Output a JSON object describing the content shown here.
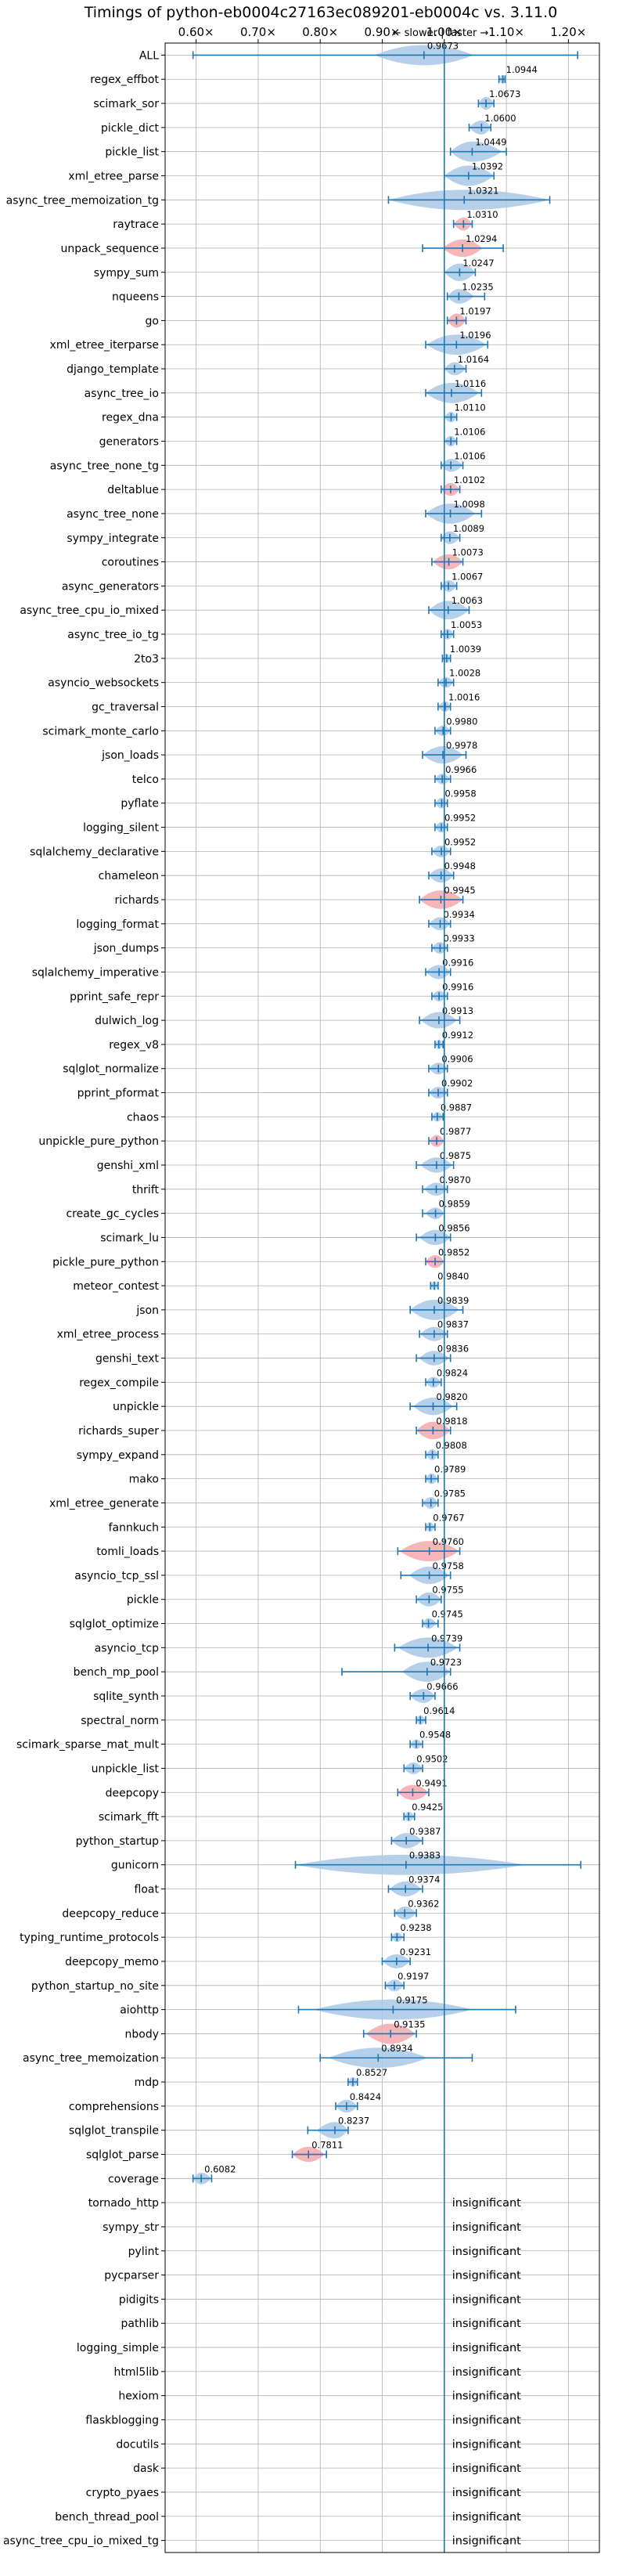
{
  "chart_data": {
    "type": "violin",
    "title": "Timings of python-eb0004c27163ec089201-eb0004c vs. 3.11.0",
    "annotation": "← slower | faster →",
    "x_ticks": [
      "0.60×",
      "0.70×",
      "0.80×",
      "0.90×",
      "1.00×",
      "1.10×",
      "1.20×"
    ],
    "x_tick_values": [
      0.6,
      0.7,
      0.8,
      0.9,
      1.0,
      1.1,
      1.2
    ],
    "xlim": [
      0.55,
      1.25
    ],
    "reference_line": 1.0,
    "grid": true,
    "insignificant_label": "insignificant",
    "benchmarks": [
      {
        "name": "ALL",
        "value": 0.9673,
        "min": 0.595,
        "max": 1.215,
        "spread": 0.05,
        "label": "0.9673"
      },
      {
        "name": "regex_effbot",
        "value": 1.0944,
        "min": 1.088,
        "max": 1.098,
        "spread": 0.005,
        "label": "1.0944"
      },
      {
        "name": "scimark_sor",
        "value": 1.0673,
        "min": 1.055,
        "max": 1.08,
        "spread": 0.012,
        "label": "1.0673"
      },
      {
        "name": "pickle_dict",
        "value": 1.06,
        "min": 1.04,
        "max": 1.075,
        "spread": 0.014,
        "label": "1.0600"
      },
      {
        "name": "pickle_list",
        "value": 1.0449,
        "min": 1.01,
        "max": 1.1,
        "spread": 0.03,
        "label": "1.0449"
      },
      {
        "name": "xml_etree_parse",
        "value": 1.0392,
        "min": 1.0,
        "max": 1.08,
        "spread": 0.028,
        "label": "1.0392"
      },
      {
        "name": "async_tree_memoization_tg",
        "value": 1.0321,
        "min": 0.91,
        "max": 1.17,
        "spread": 0.09,
        "label": "1.0321"
      },
      {
        "name": "raytrace",
        "value": 1.031,
        "min": 1.015,
        "max": 1.045,
        "spread": 0.012,
        "label": "1.0310",
        "highlight": true
      },
      {
        "name": "unpack_sequence",
        "value": 1.0294,
        "min": 0.965,
        "max": 1.095,
        "spread": 0.02,
        "label": "1.0294",
        "highlight": true
      },
      {
        "name": "sympy_sum",
        "value": 1.0247,
        "min": 1.0,
        "max": 1.05,
        "spread": 0.02,
        "label": "1.0247"
      },
      {
        "name": "nqueens",
        "value": 1.0235,
        "min": 1.005,
        "max": 1.065,
        "spread": 0.015,
        "label": "1.0235"
      },
      {
        "name": "go",
        "value": 1.0197,
        "min": 1.005,
        "max": 1.035,
        "spread": 0.014,
        "label": "1.0197",
        "highlight": true
      },
      {
        "name": "xml_etree_iterparse",
        "value": 1.0196,
        "min": 0.97,
        "max": 1.07,
        "spread": 0.03,
        "label": "1.0196"
      },
      {
        "name": "django_template",
        "value": 1.0164,
        "min": 1.0,
        "max": 1.035,
        "spread": 0.012,
        "label": "1.0164"
      },
      {
        "name": "async_tree_io",
        "value": 1.0116,
        "min": 0.97,
        "max": 1.06,
        "spread": 0.028,
        "label": "1.0116"
      },
      {
        "name": "regex_dna",
        "value": 1.011,
        "min": 1.0,
        "max": 1.02,
        "spread": 0.008,
        "label": "1.0110"
      },
      {
        "name": "generators",
        "value": 1.0106,
        "min": 1.0,
        "max": 1.02,
        "spread": 0.008,
        "label": "1.0106"
      },
      {
        "name": "async_tree_none_tg",
        "value": 1.0106,
        "min": 0.995,
        "max": 1.03,
        "spread": 0.012,
        "label": "1.0106"
      },
      {
        "name": "deltablue",
        "value": 1.0102,
        "min": 0.995,
        "max": 1.025,
        "spread": 0.012,
        "label": "1.0102",
        "highlight": true
      },
      {
        "name": "async_tree_none",
        "value": 1.0098,
        "min": 0.97,
        "max": 1.06,
        "spread": 0.025,
        "label": "1.0098"
      },
      {
        "name": "sympy_integrate",
        "value": 1.0089,
        "min": 0.995,
        "max": 1.025,
        "spread": 0.012,
        "label": "1.0089"
      },
      {
        "name": "coroutines",
        "value": 1.0073,
        "min": 0.98,
        "max": 1.03,
        "spread": 0.016,
        "label": "1.0073",
        "highlight": true
      },
      {
        "name": "async_generators",
        "value": 1.0067,
        "min": 0.995,
        "max": 1.02,
        "spread": 0.01,
        "label": "1.0067"
      },
      {
        "name": "async_tree_cpu_io_mixed",
        "value": 1.0063,
        "min": 0.975,
        "max": 1.04,
        "spread": 0.022,
        "label": "1.0063"
      },
      {
        "name": "async_tree_io_tg",
        "value": 1.0053,
        "min": 0.995,
        "max": 1.015,
        "spread": 0.008,
        "label": "1.0053"
      },
      {
        "name": "2to3",
        "value": 1.0039,
        "min": 0.997,
        "max": 1.01,
        "spread": 0.006,
        "label": "1.0039"
      },
      {
        "name": "asyncio_websockets",
        "value": 1.0028,
        "min": 0.99,
        "max": 1.015,
        "spread": 0.008,
        "label": "1.0028"
      },
      {
        "name": "gc_traversal",
        "value": 1.0016,
        "min": 0.99,
        "max": 1.01,
        "spread": 0.008,
        "label": "1.0016"
      },
      {
        "name": "scimark_monte_carlo",
        "value": 0.998,
        "min": 0.985,
        "max": 1.01,
        "spread": 0.008,
        "label": "0.9980"
      },
      {
        "name": "json_loads",
        "value": 0.9978,
        "min": 0.965,
        "max": 1.035,
        "spread": 0.02,
        "label": "0.9978"
      },
      {
        "name": "telco",
        "value": 0.9966,
        "min": 0.985,
        "max": 1.01,
        "spread": 0.008,
        "label": "0.9966"
      },
      {
        "name": "pyflate",
        "value": 0.9958,
        "min": 0.985,
        "max": 1.005,
        "spread": 0.008,
        "label": "0.9958"
      },
      {
        "name": "logging_silent",
        "value": 0.9952,
        "min": 0.985,
        "max": 1.005,
        "spread": 0.008,
        "label": "0.9952"
      },
      {
        "name": "sqlalchemy_declarative",
        "value": 0.9952,
        "min": 0.98,
        "max": 1.01,
        "spread": 0.01,
        "label": "0.9952"
      },
      {
        "name": "chameleon",
        "value": 0.9948,
        "min": 0.975,
        "max": 1.015,
        "spread": 0.014,
        "label": "0.9948"
      },
      {
        "name": "richards",
        "value": 0.9945,
        "min": 0.96,
        "max": 1.03,
        "spread": 0.022,
        "label": "0.9945",
        "highlight": true
      },
      {
        "name": "logging_format",
        "value": 0.9934,
        "min": 0.975,
        "max": 1.01,
        "spread": 0.012,
        "label": "0.9934"
      },
      {
        "name": "json_dumps",
        "value": 0.9933,
        "min": 0.98,
        "max": 1.005,
        "spread": 0.01,
        "label": "0.9933"
      },
      {
        "name": "sqlalchemy_imperative",
        "value": 0.9916,
        "min": 0.97,
        "max": 1.01,
        "spread": 0.014,
        "label": "0.9916"
      },
      {
        "name": "pprint_safe_repr",
        "value": 0.9916,
        "min": 0.98,
        "max": 1.005,
        "spread": 0.008,
        "label": "0.9916"
      },
      {
        "name": "dulwich_log",
        "value": 0.9913,
        "min": 0.96,
        "max": 1.025,
        "spread": 0.018,
        "label": "0.9913"
      },
      {
        "name": "regex_v8",
        "value": 0.9912,
        "min": 0.985,
        "max": 0.998,
        "spread": 0.006,
        "label": "0.9912"
      },
      {
        "name": "sqlglot_normalize",
        "value": 0.9906,
        "min": 0.975,
        "max": 1.005,
        "spread": 0.01,
        "label": "0.9906"
      },
      {
        "name": "pprint_pformat",
        "value": 0.9902,
        "min": 0.975,
        "max": 1.005,
        "spread": 0.01,
        "label": "0.9902"
      },
      {
        "name": "chaos",
        "value": 0.9887,
        "min": 0.98,
        "max": 0.998,
        "spread": 0.006,
        "label": "0.9887"
      },
      {
        "name": "unpickle_pure_python",
        "value": 0.9877,
        "min": 0.975,
        "max": 1.0,
        "spread": 0.01,
        "label": "0.9877",
        "highlight": true
      },
      {
        "name": "genshi_xml",
        "value": 0.9875,
        "min": 0.955,
        "max": 1.015,
        "spread": 0.016,
        "label": "0.9875"
      },
      {
        "name": "thrift",
        "value": 0.987,
        "min": 0.965,
        "max": 1.005,
        "spread": 0.012,
        "label": "0.9870"
      },
      {
        "name": "create_gc_cycles",
        "value": 0.9859,
        "min": 0.965,
        "max": 1.0,
        "spread": 0.01,
        "label": "0.9859"
      },
      {
        "name": "scimark_lu",
        "value": 0.9856,
        "min": 0.955,
        "max": 1.01,
        "spread": 0.016,
        "label": "0.9856"
      },
      {
        "name": "pickle_pure_python",
        "value": 0.9852,
        "min": 0.97,
        "max": 1.0,
        "spread": 0.012,
        "label": "0.9852",
        "highlight": true
      },
      {
        "name": "meteor_contest",
        "value": 0.984,
        "min": 0.978,
        "max": 0.99,
        "spread": 0.005,
        "label": "0.9840"
      },
      {
        "name": "json",
        "value": 0.9839,
        "min": 0.945,
        "max": 1.03,
        "spread": 0.025,
        "label": "0.9839"
      },
      {
        "name": "xml_etree_process",
        "value": 0.9837,
        "min": 0.96,
        "max": 1.005,
        "spread": 0.014,
        "label": "0.9837"
      },
      {
        "name": "genshi_text",
        "value": 0.9836,
        "min": 0.955,
        "max": 1.01,
        "spread": 0.015,
        "label": "0.9836"
      },
      {
        "name": "regex_compile",
        "value": 0.9824,
        "min": 0.97,
        "max": 0.995,
        "spread": 0.008,
        "label": "0.9824"
      },
      {
        "name": "unpickle",
        "value": 0.982,
        "min": 0.945,
        "max": 1.02,
        "spread": 0.02,
        "label": "0.9820"
      },
      {
        "name": "richards_super",
        "value": 0.9818,
        "min": 0.955,
        "max": 1.01,
        "spread": 0.02,
        "label": "0.9818",
        "highlight": true
      },
      {
        "name": "sympy_expand",
        "value": 0.9808,
        "min": 0.97,
        "max": 0.99,
        "spread": 0.008,
        "label": "0.9808"
      },
      {
        "name": "mako",
        "value": 0.9789,
        "min": 0.97,
        "max": 0.99,
        "spread": 0.008,
        "label": "0.9789"
      },
      {
        "name": "xml_etree_generate",
        "value": 0.9785,
        "min": 0.965,
        "max": 0.99,
        "spread": 0.01,
        "label": "0.9785"
      },
      {
        "name": "fannkuch",
        "value": 0.9767,
        "min": 0.97,
        "max": 0.985,
        "spread": 0.006,
        "label": "0.9767"
      },
      {
        "name": "tomli_loads",
        "value": 0.976,
        "min": 0.925,
        "max": 1.025,
        "spread": 0.03,
        "label": "0.9760",
        "highlight": true
      },
      {
        "name": "asyncio_tcp_ssl",
        "value": 0.9758,
        "min": 0.93,
        "max": 1.01,
        "spread": 0.02,
        "label": "0.9758"
      },
      {
        "name": "pickle",
        "value": 0.9755,
        "min": 0.955,
        "max": 0.995,
        "spread": 0.014,
        "label": "0.9755"
      },
      {
        "name": "sqlglot_optimize",
        "value": 0.9745,
        "min": 0.965,
        "max": 0.99,
        "spread": 0.008,
        "label": "0.9745"
      },
      {
        "name": "asyncio_tcp",
        "value": 0.9739,
        "min": 0.92,
        "max": 1.025,
        "spread": 0.03,
        "label": "0.9739"
      },
      {
        "name": "bench_mp_pool",
        "value": 0.9723,
        "min": 0.835,
        "max": 1.01,
        "spread": 0.025,
        "label": "0.9723"
      },
      {
        "name": "sqlite_synth",
        "value": 0.9666,
        "min": 0.945,
        "max": 0.985,
        "spread": 0.014,
        "label": "0.9666"
      },
      {
        "name": "spectral_norm",
        "value": 0.9614,
        "min": 0.955,
        "max": 0.97,
        "spread": 0.006,
        "label": "0.9614"
      },
      {
        "name": "scimark_sparse_mat_mult",
        "value": 0.9548,
        "min": 0.945,
        "max": 0.965,
        "spread": 0.006,
        "label": "0.9548"
      },
      {
        "name": "unpickle_list",
        "value": 0.9502,
        "min": 0.935,
        "max": 0.965,
        "spread": 0.01,
        "label": "0.9502"
      },
      {
        "name": "deepcopy",
        "value": 0.9491,
        "min": 0.925,
        "max": 0.975,
        "spread": 0.016,
        "label": "0.9491",
        "highlight": true
      },
      {
        "name": "scimark_fft",
        "value": 0.9425,
        "min": 0.935,
        "max": 0.952,
        "spread": 0.006,
        "label": "0.9425"
      },
      {
        "name": "python_startup",
        "value": 0.9387,
        "min": 0.915,
        "max": 0.965,
        "spread": 0.016,
        "label": "0.9387"
      },
      {
        "name": "gunicorn",
        "value": 0.9383,
        "min": 0.76,
        "max": 1.22,
        "spread": 0.12,
        "label": "0.9383"
      },
      {
        "name": "float",
        "value": 0.9374,
        "min": 0.91,
        "max": 0.965,
        "spread": 0.016,
        "label": "0.9374"
      },
      {
        "name": "deepcopy_reduce",
        "value": 0.9362,
        "min": 0.92,
        "max": 0.955,
        "spread": 0.012,
        "label": "0.9362"
      },
      {
        "name": "typing_runtime_protocols",
        "value": 0.9238,
        "min": 0.915,
        "max": 0.935,
        "spread": 0.006,
        "label": "0.9238"
      },
      {
        "name": "deepcopy_memo",
        "value": 0.9231,
        "min": 0.9,
        "max": 0.945,
        "spread": 0.014,
        "label": "0.9231"
      },
      {
        "name": "python_startup_no_site",
        "value": 0.9197,
        "min": 0.905,
        "max": 0.935,
        "spread": 0.01,
        "label": "0.9197"
      },
      {
        "name": "aiohttp",
        "value": 0.9175,
        "min": 0.765,
        "max": 1.115,
        "spread": 0.08,
        "label": "0.9175"
      },
      {
        "name": "nbody",
        "value": 0.9135,
        "min": 0.87,
        "max": 0.955,
        "spread": 0.025,
        "label": "0.9135",
        "highlight": true
      },
      {
        "name": "async_tree_memoization",
        "value": 0.8934,
        "min": 0.8,
        "max": 1.045,
        "spread": 0.05,
        "label": "0.8934"
      },
      {
        "name": "mdp",
        "value": 0.8527,
        "min": 0.845,
        "max": 0.86,
        "spread": 0.006,
        "label": "0.8527"
      },
      {
        "name": "comprehensions",
        "value": 0.8424,
        "min": 0.825,
        "max": 0.86,
        "spread": 0.012,
        "label": "0.8424"
      },
      {
        "name": "sqlglot_transpile",
        "value": 0.8237,
        "min": 0.78,
        "max": 0.845,
        "spread": 0.018,
        "label": "0.8237"
      },
      {
        "name": "sqlglot_parse",
        "value": 0.7811,
        "min": 0.755,
        "max": 0.81,
        "spread": 0.016,
        "label": "0.7811",
        "highlight": true
      },
      {
        "name": "coverage",
        "value": 0.6082,
        "min": 0.595,
        "max": 0.625,
        "spread": 0.01,
        "label": "0.6082"
      },
      {
        "name": "tornado_http",
        "insignificant": true
      },
      {
        "name": "sympy_str",
        "insignificant": true
      },
      {
        "name": "pylint",
        "insignificant": true
      },
      {
        "name": "pycparser",
        "insignificant": true
      },
      {
        "name": "pidigits",
        "insignificant": true
      },
      {
        "name": "pathlib",
        "insignificant": true
      },
      {
        "name": "logging_simple",
        "insignificant": true
      },
      {
        "name": "html5lib",
        "insignificant": true
      },
      {
        "name": "hexiom",
        "insignificant": true
      },
      {
        "name": "flaskblogging",
        "insignificant": true
      },
      {
        "name": "docutils",
        "insignificant": true
      },
      {
        "name": "dask",
        "insignificant": true
      },
      {
        "name": "crypto_pyaes",
        "insignificant": true
      },
      {
        "name": "bench_thread_pool",
        "insignificant": true
      },
      {
        "name": "async_tree_cpu_io_mixed_tg",
        "insignificant": true
      }
    ],
    "colors": {
      "violin": "#a9c8e6",
      "violin_highlight": "#f3a8ad",
      "line": "#1f77b4",
      "grid": "#b0b0b0",
      "axis": "#000000"
    }
  }
}
